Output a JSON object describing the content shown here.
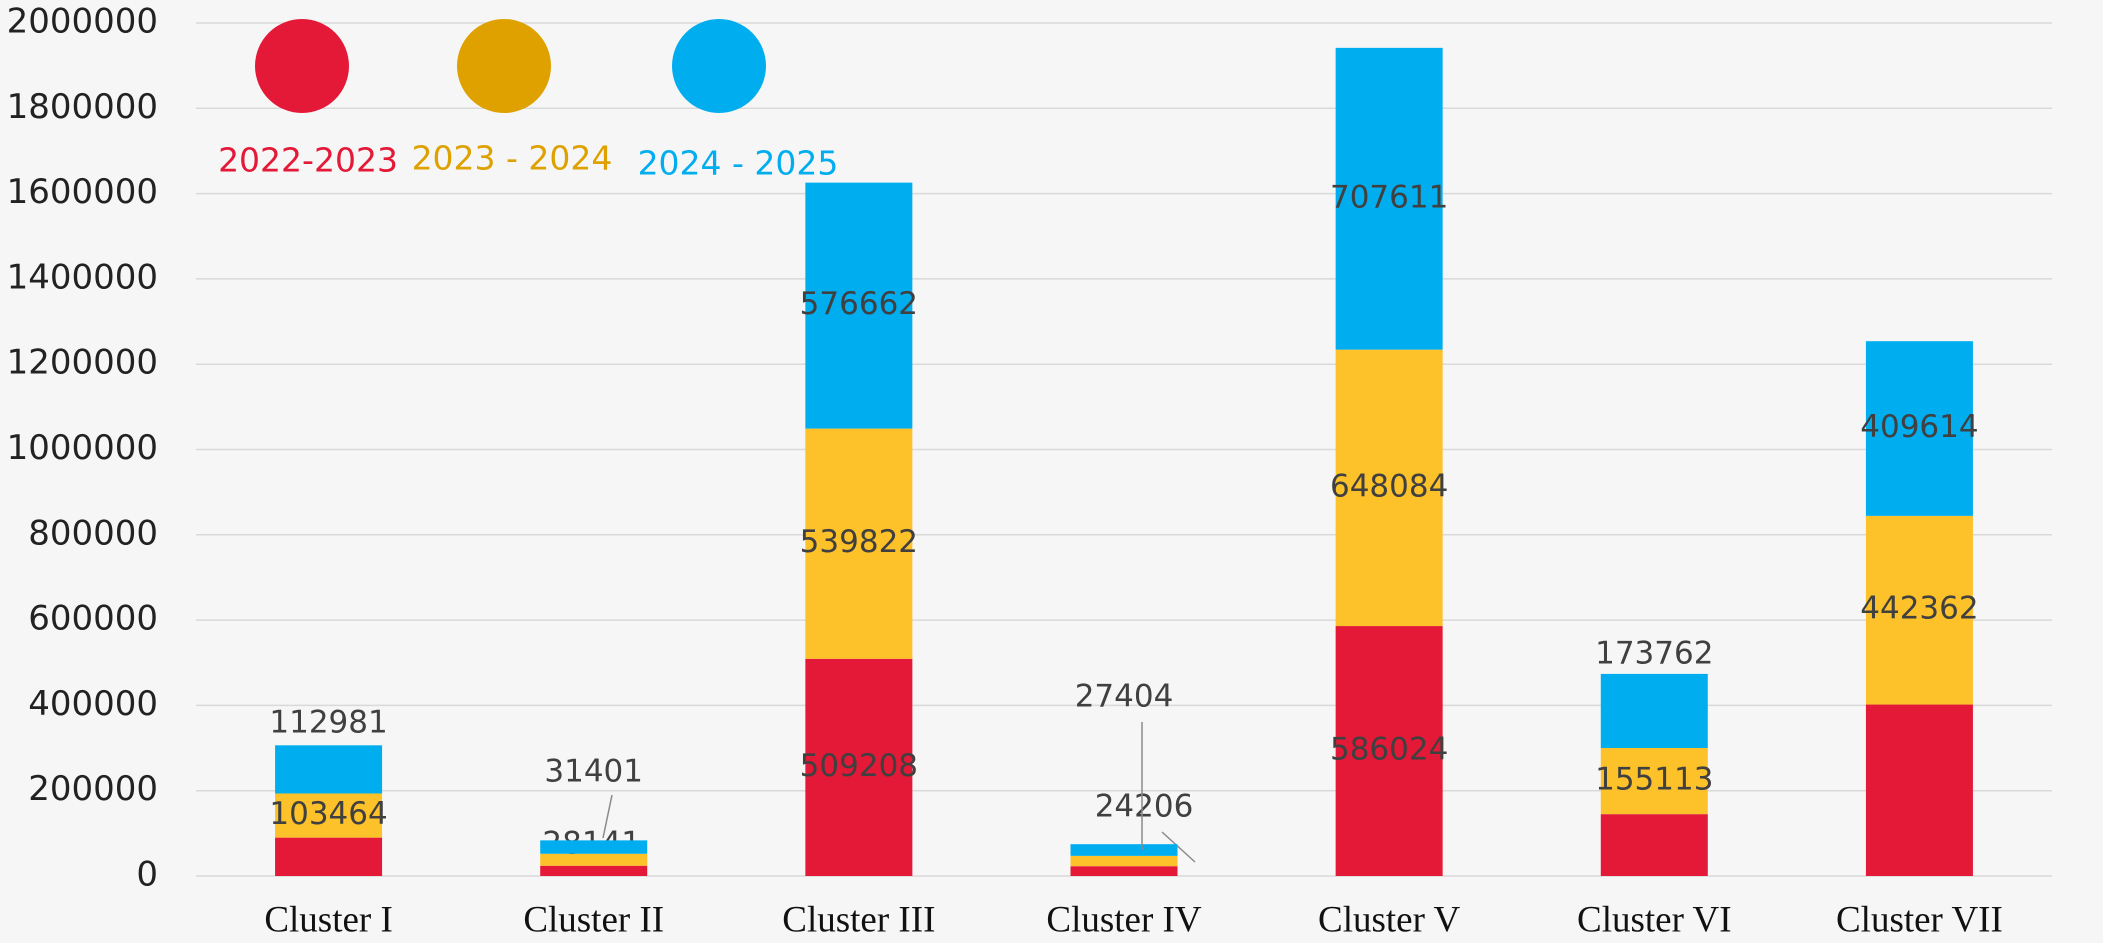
{
  "chart_data": {
    "type": "stacked_bar",
    "categories": [
      "Cluster I",
      "Cluster II",
      "Cluster III",
      "Cluster IV",
      "Cluster V",
      "Cluster VI",
      "Cluster VII"
    ],
    "series": [
      {
        "name": "2022-2023",
        "color": "#e31937",
        "values": [
          90000,
          24000,
          509208,
          23000,
          586024,
          145000,
          402000
        ],
        "value_labels": [
          null,
          null,
          "509208",
          null,
          "586024",
          null,
          null
        ]
      },
      {
        "name": "2023 - 2024",
        "color": "#fdc12a",
        "values": [
          103464,
          28141,
          539822,
          24206,
          648084,
          155113,
          442362
        ],
        "value_labels": [
          "103464",
          "28141",
          "539822",
          "24206",
          "648084",
          "155113",
          "442362"
        ]
      },
      {
        "name": "2024 - 2025",
        "color": "#00aeef",
        "values": [
          112981,
          31401,
          576662,
          27404,
          707611,
          173762,
          409614
        ],
        "value_labels": [
          "112981",
          "31401",
          "576662",
          "27404",
          "707611",
          "173762",
          "409614"
        ]
      }
    ],
    "ylim": [
      0,
      2000000
    ],
    "yticks": [
      0,
      200000,
      400000,
      600000,
      800000,
      1000000,
      1200000,
      1400000,
      1600000,
      1800000,
      2000000
    ],
    "grid": true
  }
}
